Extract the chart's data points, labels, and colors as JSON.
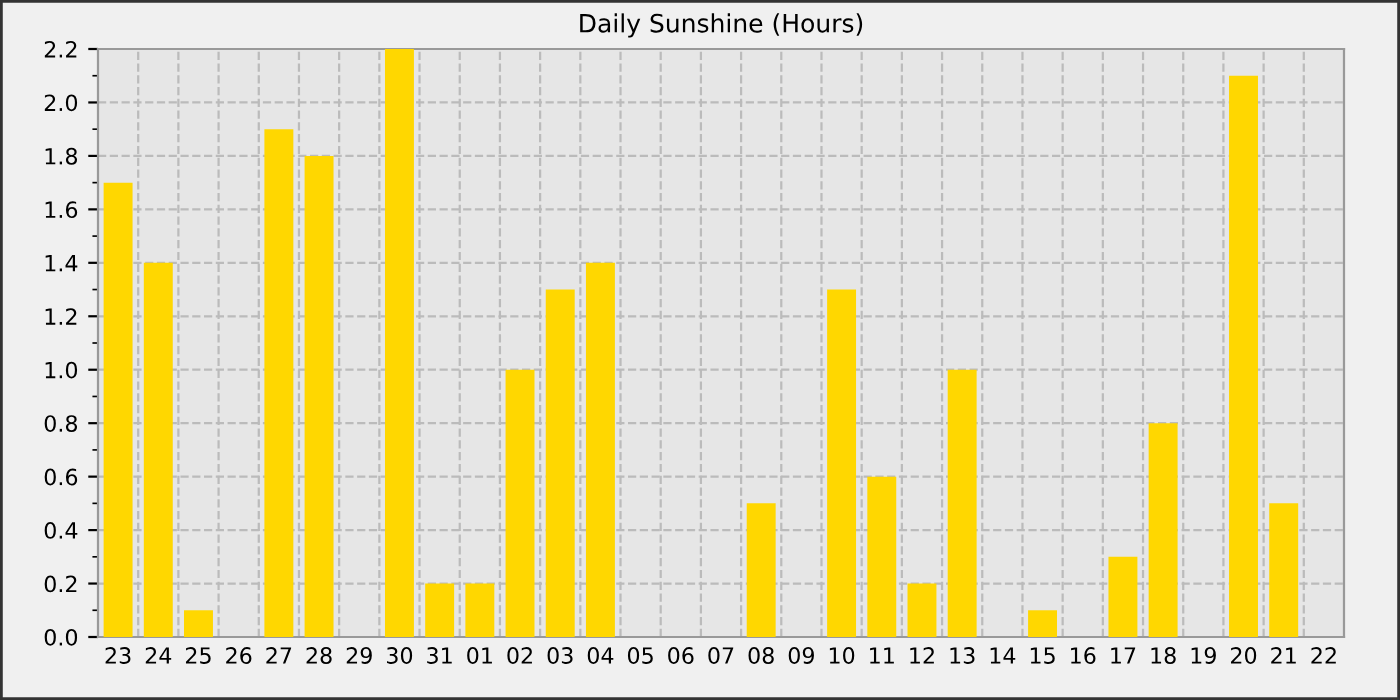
{
  "chart_data": {
    "type": "bar",
    "title": "Daily Sunshine (Hours)",
    "categories": [
      "23",
      "24",
      "25",
      "26",
      "27",
      "28",
      "29",
      "30",
      "31",
      "01",
      "02",
      "03",
      "04",
      "05",
      "06",
      "07",
      "08",
      "09",
      "10",
      "11",
      "12",
      "13",
      "14",
      "15",
      "16",
      "17",
      "18",
      "19",
      "20",
      "21",
      "22"
    ],
    "values": [
      1.7,
      1.4,
      0.1,
      0,
      1.9,
      1.8,
      0,
      2.2,
      0.2,
      0.2,
      1.0,
      1.3,
      1.4,
      0,
      0,
      0,
      0.5,
      0,
      1.3,
      0.6,
      0.2,
      1.0,
      0,
      0.1,
      0,
      0.3,
      0.8,
      0,
      2.1,
      0.5,
      0
    ],
    "color": "#ffd700",
    "ylim": [
      0,
      2.2
    ],
    "yticks": [
      {
        "value": 0,
        "label": "0.0"
      },
      {
        "value": 0.2,
        "label": "0.2"
      },
      {
        "value": 0.4,
        "label": "0.4"
      },
      {
        "value": 0.6,
        "label": "0.6"
      },
      {
        "value": 0.8,
        "label": "0.8"
      },
      {
        "value": 1.0,
        "label": "1.0"
      },
      {
        "value": 1.2,
        "label": "1.2"
      },
      {
        "value": 1.4,
        "label": "1.4"
      },
      {
        "value": 1.6,
        "label": "1.6"
      },
      {
        "value": 1.8,
        "label": "1.8"
      },
      {
        "value": 2.0,
        "label": "2.0"
      },
      {
        "value": 2.2,
        "label": "2.2"
      }
    ],
    "grid": true
  }
}
